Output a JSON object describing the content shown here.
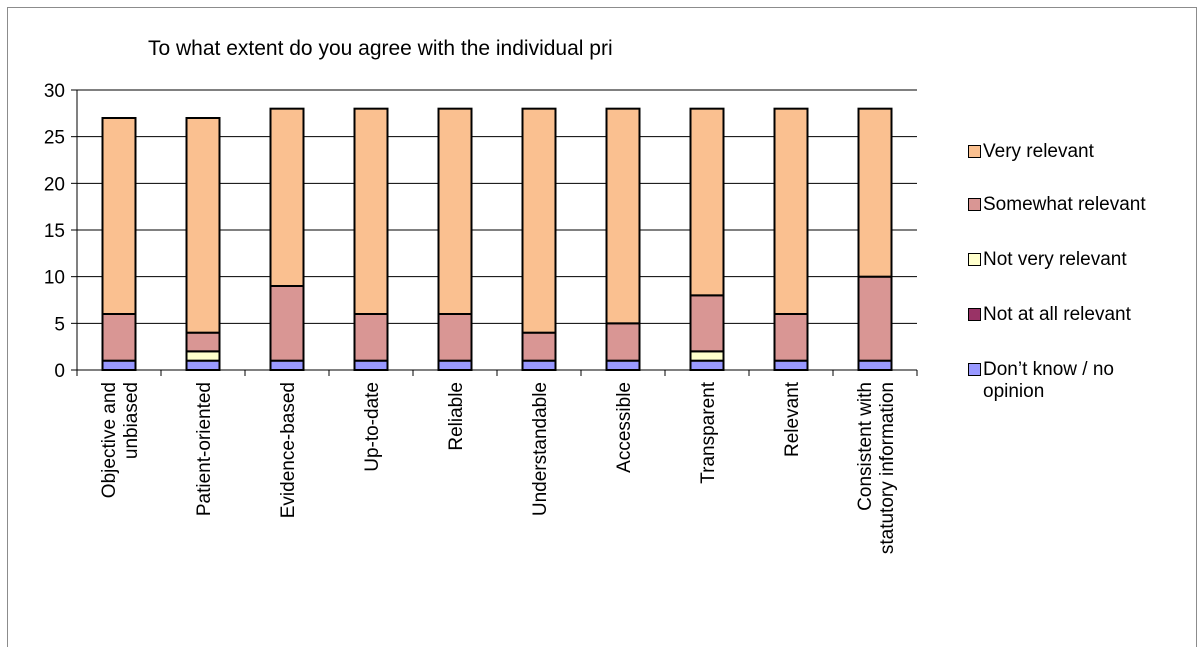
{
  "chart_data": {
    "type": "bar",
    "stacked": true,
    "title": "To what extent do you agree with the individual pri",
    "categories": [
      "Objective and unbiased",
      "Patient-oriented",
      "Evidence-based",
      "Up-to-date",
      "Reliable",
      "Understandable",
      "Accessible",
      "Transparent",
      "Relevant",
      "Consistent with statutory information"
    ],
    "category_lines": [
      [
        "Objective and",
        "unbiased"
      ],
      [
        "Patient-oriented"
      ],
      [
        "Evidence-based"
      ],
      [
        "Up-to-date"
      ],
      [
        "Reliable"
      ],
      [
        "Understandable"
      ],
      [
        "Accessible"
      ],
      [
        "Transparent"
      ],
      [
        "Relevant"
      ],
      [
        "Consistent with",
        "statutory information"
      ]
    ],
    "series": [
      {
        "name": "Don’t know / no opinion",
        "color": "#9999ff",
        "values": [
          1,
          1,
          1,
          1,
          1,
          1,
          1,
          1,
          1,
          1
        ]
      },
      {
        "name": "Not at all relevant",
        "color": "#993366",
        "values": [
          0,
          0,
          0,
          0,
          0,
          0,
          0,
          0,
          0,
          0
        ]
      },
      {
        "name": "Not very relevant",
        "color": "#ffffcc",
        "values": [
          0,
          1,
          0,
          0,
          0,
          0,
          0,
          1,
          0,
          0
        ]
      },
      {
        "name": "Somewhat relevant",
        "color": "#d99694",
        "values": [
          5,
          2,
          8,
          5,
          5,
          3,
          4,
          6,
          5,
          9
        ]
      },
      {
        "name": "Very relevant",
        "color": "#fac090",
        "values": [
          21,
          23,
          19,
          22,
          22,
          24,
          23,
          20,
          22,
          18
        ]
      }
    ],
    "ylim": [
      0,
      30
    ],
    "yticks": [
      "0",
      "5",
      "10",
      "15",
      "20",
      "25",
      "30"
    ],
    "grid": true,
    "legend_position": "right"
  },
  "legend": {
    "items": [
      {
        "label": "Very relevant",
        "color": "#fac090"
      },
      {
        "label": "Somewhat relevant",
        "color": "#d99694"
      },
      {
        "label": "Not very relevant",
        "color": "#ffffcc"
      },
      {
        "label": "Not at all relevant",
        "color": "#993366"
      },
      {
        "label": "Don’t know / no opinion",
        "color": "#9999ff"
      }
    ]
  }
}
